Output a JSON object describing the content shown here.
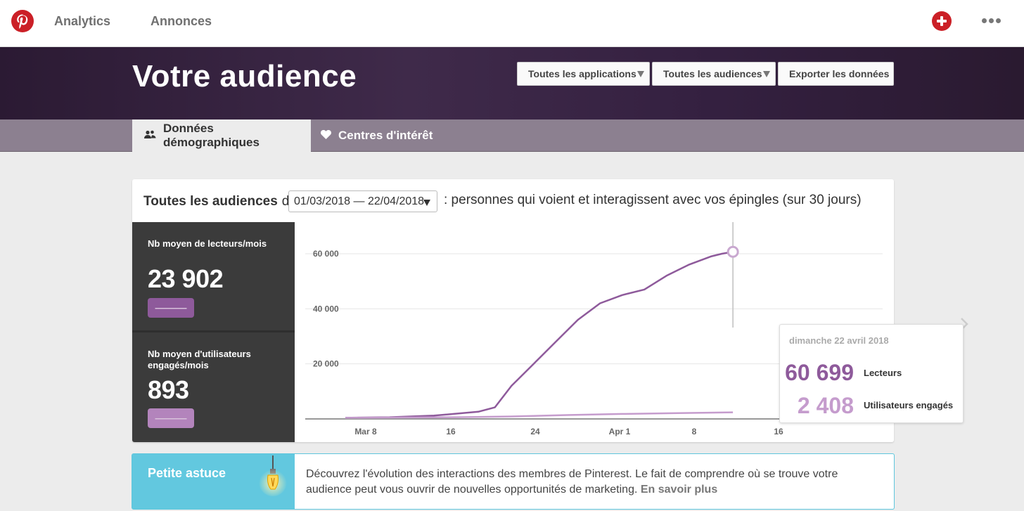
{
  "nav": {
    "analytics_label": "Analytics",
    "ads_label": "Annonces"
  },
  "header": {
    "title": "Votre audience",
    "apps_select": "Toutes les applications",
    "audiences_select": "Toutes les audiences",
    "export_label": "Exporter les données"
  },
  "tabs": [
    {
      "label": "Données démographiques",
      "icon": "people-icon",
      "active": true
    },
    {
      "label": "Centres d'intérêt",
      "icon": "heart-icon",
      "active": false
    }
  ],
  "card": {
    "audience_label": "Toutes les audiences",
    "of_label": "de",
    "date_range": "01/03/2018 — 22/04/2018",
    "description": ": personnes qui voient et interagissent avec vos épingles (sur 30 jours)"
  },
  "stats": {
    "readers_label": "Nb moyen de lecteurs/mois",
    "readers_value": "23 902",
    "readers_pill": "———",
    "engaged_label": "Nb moyen d'utilisateurs engagés/mois",
    "engaged_value": "893",
    "engaged_pill": "———"
  },
  "tooltip": {
    "date": "dimanche 22 avril 2018",
    "readers_value": "60 699",
    "readers_label": "Lecteurs",
    "engaged_value": "2 408",
    "engaged_label": "Utilisateurs engagés"
  },
  "chart_data": {
    "type": "line",
    "y_ticks": [
      "60 000",
      "40 000",
      "20 000"
    ],
    "x_ticks": [
      "Mar 8",
      "16",
      "24",
      "Apr 1",
      "8",
      "16"
    ],
    "ylim": [
      0,
      66000
    ],
    "grid": true,
    "series": [
      {
        "name": "Lecteurs",
        "color": "#8e5a9b",
        "values": [
          [
            0,
            400
          ],
          [
            8,
            600
          ],
          [
            16,
            1200
          ],
          [
            24,
            2600
          ],
          [
            27,
            4200
          ],
          [
            30,
            12000
          ],
          [
            34,
            20000
          ],
          [
            38,
            28000
          ],
          [
            42,
            36000
          ],
          [
            46,
            42000
          ],
          [
            50,
            45000
          ],
          [
            54,
            47000
          ],
          [
            58,
            52000
          ],
          [
            62,
            56000
          ],
          [
            66,
            59000
          ],
          [
            68,
            60000
          ],
          [
            70,
            60699
          ]
        ]
      },
      {
        "name": "Utilisateurs engagés",
        "color": "#c59ccd",
        "values": [
          [
            0,
            400
          ],
          [
            10,
            500
          ],
          [
            20,
            600
          ],
          [
            30,
            900
          ],
          [
            40,
            1400
          ],
          [
            50,
            1800
          ],
          [
            60,
            2100
          ],
          [
            70,
            2408
          ]
        ]
      }
    ],
    "highlight_index": 70
  },
  "tip": {
    "title": "Petite astuce",
    "text": "Découvrez l'évolution des interactions des membres de Pinterest. Le fait de comprendre où se trouve votre audience peut vous ouvrir de nouvelles opportunités de marketing.",
    "link": "En savoir plus"
  },
  "colors": {
    "brand_red": "#cb2027",
    "readers_purple": "#8e5a9b",
    "engaged_purple": "#c59ccd",
    "tip_blue": "#62c8df"
  }
}
